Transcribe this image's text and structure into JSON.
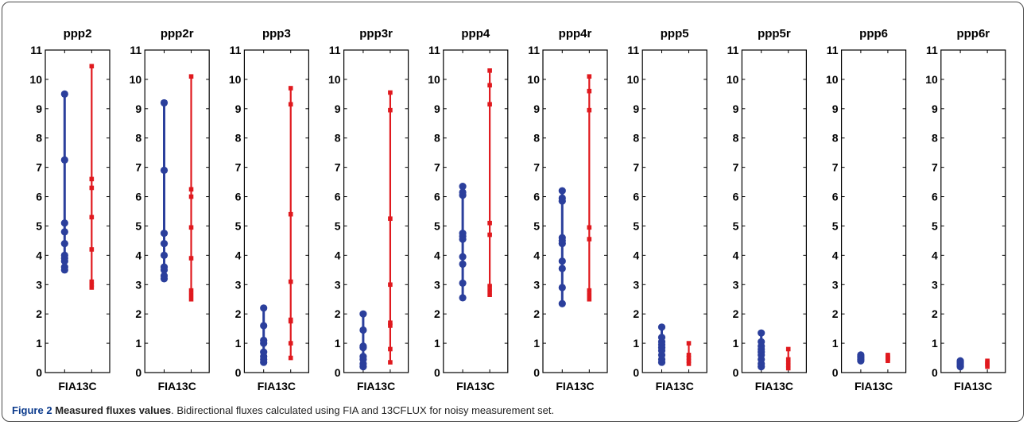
{
  "figure": {
    "caption_label": "Figure 2",
    "caption_title": "Measured fluxes values",
    "caption_text": ". Bidirectional fluxes calculated using FIA and 13CFLUX for noisy measurement set."
  },
  "colors": {
    "fia": "#2b3f9c",
    "cflux": "#e0191e",
    "axis": "#000000"
  },
  "chart_data": [
    {
      "type": "scatter",
      "title": "ppp2",
      "x_tick_label": "FIA13C",
      "ylim": [
        0,
        11
      ],
      "y_ticks": [
        "0",
        "1",
        "2",
        "3",
        "4",
        "5",
        "6",
        "7",
        "8",
        "9",
        "10",
        "11"
      ],
      "series": [
        {
          "values": [
            3.5,
            3.6,
            3.8,
            3.9,
            4.0,
            4.4,
            4.8,
            5.1,
            7.25,
            9.5
          ]
        },
        {
          "values": [
            2.9,
            3.0,
            3.1,
            4.2,
            5.3,
            6.3,
            6.6,
            10.45
          ]
        }
      ]
    },
    {
      "type": "scatter",
      "title": "ppp2r",
      "x_tick_label": "FIA13C",
      "ylim": [
        0,
        11
      ],
      "y_ticks": [
        "0",
        "1",
        "2",
        "3",
        "4",
        "5",
        "6",
        "7",
        "8",
        "9",
        "10",
        "11"
      ],
      "series": [
        {
          "values": [
            3.2,
            3.3,
            3.5,
            3.6,
            4.0,
            4.4,
            4.75,
            6.9,
            9.2
          ]
        },
        {
          "values": [
            2.5,
            2.65,
            2.8,
            3.9,
            4.95,
            6.0,
            6.25,
            10.1
          ]
        }
      ]
    },
    {
      "type": "scatter",
      "title": "ppp3",
      "x_tick_label": "FIA13C",
      "ylim": [
        0,
        11
      ],
      "y_ticks": [
        "0",
        "1",
        "2",
        "3",
        "4",
        "5",
        "6",
        "7",
        "8",
        "9",
        "10",
        "11"
      ],
      "series": [
        {
          "values": [
            0.35,
            0.45,
            0.55,
            0.7,
            1.0,
            1.1,
            1.6,
            2.2
          ]
        },
        {
          "values": [
            0.5,
            1.0,
            1.75,
            1.8,
            3.1,
            5.4,
            9.15,
            9.7
          ]
        }
      ]
    },
    {
      "type": "scatter",
      "title": "ppp3r",
      "x_tick_label": "FIA13C",
      "ylim": [
        0,
        11
      ],
      "y_ticks": [
        "0",
        "1",
        "2",
        "3",
        "4",
        "5",
        "6",
        "7",
        "8",
        "9",
        "10",
        "11"
      ],
      "series": [
        {
          "values": [
            0.2,
            0.3,
            0.45,
            0.55,
            0.85,
            0.9,
            1.45,
            2.0
          ]
        },
        {
          "values": [
            0.35,
            0.8,
            1.6,
            1.7,
            3.0,
            5.25,
            8.95,
            9.55
          ]
        }
      ]
    },
    {
      "type": "scatter",
      "title": "ppp4",
      "x_tick_label": "FIA13C",
      "ylim": [
        0,
        11
      ],
      "y_ticks": [
        "0",
        "1",
        "2",
        "3",
        "4",
        "5",
        "6",
        "7",
        "8",
        "9",
        "10",
        "11"
      ],
      "series": [
        {
          "values": [
            2.55,
            3.05,
            3.7,
            3.95,
            4.55,
            4.65,
            4.75,
            6.05,
            6.15,
            6.35
          ]
        },
        {
          "values": [
            2.65,
            2.8,
            2.95,
            4.7,
            5.1,
            9.15,
            9.8,
            10.3
          ]
        }
      ]
    },
    {
      "type": "scatter",
      "title": "ppp4r",
      "x_tick_label": "FIA13C",
      "ylim": [
        0,
        11
      ],
      "y_ticks": [
        "0",
        "1",
        "2",
        "3",
        "4",
        "5",
        "6",
        "7",
        "8",
        "9",
        "10",
        "11"
      ],
      "series": [
        {
          "values": [
            2.35,
            2.9,
            3.55,
            3.8,
            4.4,
            4.5,
            4.6,
            5.85,
            5.95,
            6.2
          ]
        },
        {
          "values": [
            2.5,
            2.65,
            2.8,
            4.55,
            4.95,
            8.95,
            9.6,
            10.1
          ]
        }
      ]
    },
    {
      "type": "scatter",
      "title": "ppp5",
      "x_tick_label": "FIA13C",
      "ylim": [
        0,
        11
      ],
      "y_ticks": [
        "0",
        "1",
        "2",
        "3",
        "4",
        "5",
        "6",
        "7",
        "8",
        "9",
        "10",
        "11"
      ],
      "series": [
        {
          "values": [
            0.35,
            0.45,
            0.6,
            0.75,
            0.85,
            0.95,
            1.05,
            1.2,
            1.55
          ]
        },
        {
          "values": [
            0.3,
            0.4,
            0.5,
            0.6,
            1.0
          ]
        }
      ]
    },
    {
      "type": "scatter",
      "title": "ppp5r",
      "x_tick_label": "FIA13C",
      "ylim": [
        0,
        11
      ],
      "y_ticks": [
        "0",
        "1",
        "2",
        "3",
        "4",
        "5",
        "6",
        "7",
        "8",
        "9",
        "10",
        "11"
      ],
      "series": [
        {
          "values": [
            0.2,
            0.3,
            0.45,
            0.6,
            0.7,
            0.8,
            0.9,
            1.05,
            1.35
          ]
        },
        {
          "values": [
            0.15,
            0.25,
            0.35,
            0.45,
            0.8
          ]
        }
      ]
    },
    {
      "type": "scatter",
      "title": "ppp6",
      "x_tick_label": "FIA13C",
      "ylim": [
        0,
        11
      ],
      "y_ticks": [
        "0",
        "1",
        "2",
        "3",
        "4",
        "5",
        "6",
        "7",
        "8",
        "9",
        "10",
        "11"
      ],
      "series": [
        {
          "values": [
            0.4,
            0.45,
            0.5,
            0.55,
            0.6
          ]
        },
        {
          "values": [
            0.4,
            0.45,
            0.5,
            0.55,
            0.6
          ]
        }
      ]
    },
    {
      "type": "scatter",
      "title": "ppp6r",
      "x_tick_label": "FIA13C",
      "ylim": [
        0,
        11
      ],
      "y_ticks": [
        "0",
        "1",
        "2",
        "3",
        "4",
        "5",
        "6",
        "7",
        "8",
        "9",
        "10",
        "11"
      ],
      "series": [
        {
          "values": [
            0.2,
            0.25,
            0.3,
            0.35,
            0.4
          ]
        },
        {
          "values": [
            0.2,
            0.25,
            0.3,
            0.35,
            0.4
          ]
        }
      ]
    }
  ]
}
